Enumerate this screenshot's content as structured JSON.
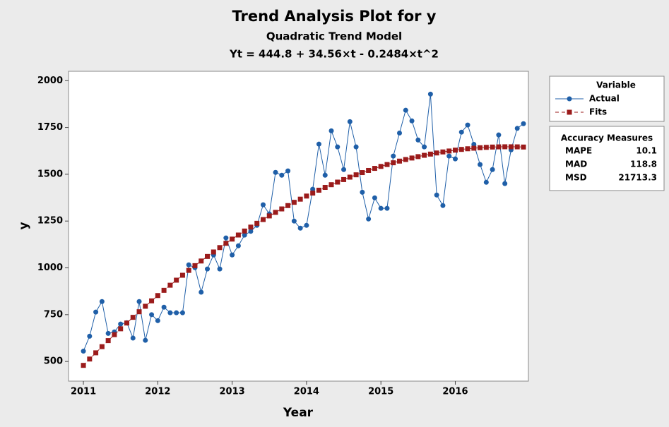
{
  "chart_data": {
    "type": "line",
    "title": "Trend Analysis Plot for y",
    "subtitle": "Quadratic Trend Model",
    "equation": "Yt = 444.8 + 34.56×t - 0.2484×t^2",
    "x_label": "Year",
    "y_label": "y",
    "x": [
      1,
      2,
      3,
      4,
      5,
      6,
      7,
      8,
      9,
      10,
      11,
      12,
      13,
      14,
      15,
      16,
      17,
      18,
      19,
      20,
      21,
      22,
      23,
      24,
      25,
      26,
      27,
      28,
      29,
      30,
      31,
      32,
      33,
      34,
      35,
      36,
      37,
      38,
      39,
      40,
      41,
      42,
      43,
      44,
      45,
      46,
      47,
      48,
      49,
      50,
      51,
      52,
      53,
      54,
      55,
      56,
      57,
      58,
      59,
      60,
      61,
      62,
      63,
      64,
      65,
      66,
      67,
      68,
      69,
      70,
      71,
      72
    ],
    "series": [
      {
        "name": "Actual",
        "color": "#1f5fa8",
        "marker": "circle",
        "dashed": false,
        "values": [
          555,
          635,
          764,
          820,
          650,
          658,
          700,
          707,
          625,
          820,
          613,
          750,
          718,
          790,
          760,
          760,
          760,
          1016,
          1001,
          870,
          994,
          1069,
          994,
          1160,
          1069,
          1118,
          1175,
          1195,
          1227,
          1337,
          1288,
          1510,
          1495,
          1518,
          1250,
          1212,
          1227,
          1420,
          1661,
          1495,
          1732,
          1646,
          1525,
          1781,
          1646,
          1404,
          1261,
          1374,
          1318,
          1318,
          1597,
          1720,
          1842,
          1785,
          1683,
          1646,
          1928,
          1389,
          1333,
          1597,
          1582,
          1725,
          1763,
          1660,
          1552,
          1457,
          1525,
          1710,
          1450,
          1630,
          1745,
          1770
        ]
      },
      {
        "name": "Fits",
        "color": "#9b1b1b",
        "marker": "square",
        "dashed": true,
        "values": [
          479.1,
          513.0,
          546.2,
          579.1,
          611.4,
          643.2,
          674.5,
          705.4,
          735.7,
          765.6,
          794.9,
          823.8,
          852.1,
          880.0,
          907.3,
          934.2,
          960.5,
          986.4,
          1011.8,
          1036.6,
          1061.0,
          1084.9,
          1108.3,
          1131.2,
          1153.6,
          1175.4,
          1196.8,
          1217.7,
          1238.1,
          1258.0,
          1277.4,
          1296.4,
          1314.8,
          1332.7,
          1350.1,
          1367.0,
          1383.5,
          1399.4,
          1414.8,
          1429.8,
          1444.2,
          1458.1,
          1471.6,
          1484.5,
          1497.0,
          1508.9,
          1520.4,
          1531.4,
          1541.8,
          1551.8,
          1561.3,
          1570.2,
          1578.7,
          1586.7,
          1594.2,
          1601.2,
          1607.7,
          1613.7,
          1619.2,
          1624.2,
          1628.7,
          1632.7,
          1636.2,
          1639.2,
          1641.7,
          1643.7,
          1645.3,
          1646.3,
          1646.8,
          1646.8,
          1646.4,
          1645.4
        ]
      }
    ],
    "xlim": [
      -1.4,
      72.8
    ],
    "xticks": [
      {
        "value": 1,
        "label": "2011"
      },
      {
        "value": 13,
        "label": "2012"
      },
      {
        "value": 25,
        "label": "2013"
      },
      {
        "value": 37,
        "label": "2014"
      },
      {
        "value": 49,
        "label": "2015"
      },
      {
        "value": 61,
        "label": "2016"
      }
    ],
    "ylim": [
      395,
      2050
    ],
    "yticks": [
      500,
      750,
      1000,
      1250,
      1500,
      1750,
      2000
    ],
    "legend_title": "Variable",
    "accuracy_title": "Accuracy Measures",
    "accuracy": [
      {
        "name": "MAPE",
        "value": 10.1
      },
      {
        "name": "MAD",
        "value": 118.8
      },
      {
        "name": "MSD",
        "value": 21713.3
      }
    ]
  }
}
